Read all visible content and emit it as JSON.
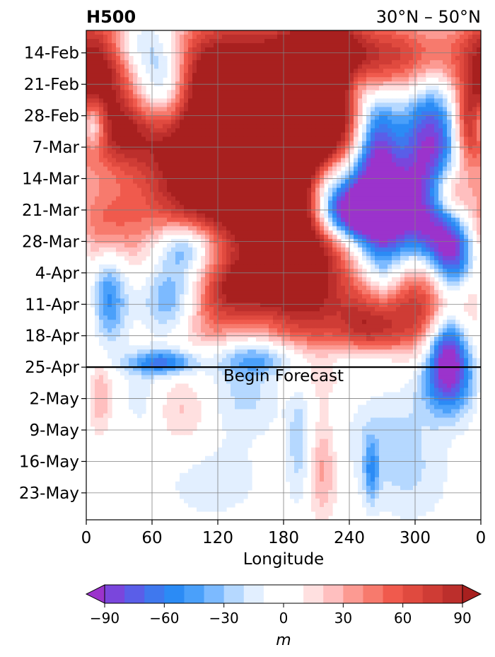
{
  "chart_data": {
    "type": "heatmap",
    "title_left": "H500",
    "title_right": "30°N – 50°N",
    "xlabel": "Longitude",
    "ylabel": "",
    "x_ticks": [
      "0",
      "60",
      "120",
      "180",
      "240",
      "300",
      "0"
    ],
    "x_tick_values": [
      0,
      60,
      120,
      180,
      240,
      300,
      360
    ],
    "xlim": [
      0,
      360
    ],
    "y_ticks": [
      "14-Feb",
      "21-Feb",
      "28-Feb",
      "7-Mar",
      "14-Mar",
      "21-Mar",
      "28-Mar",
      "4-Apr",
      "11-Apr",
      "18-Apr",
      "25-Apr",
      "2-May",
      "9-May",
      "16-May",
      "23-May"
    ],
    "y_range": [
      "2024-02-09",
      "2024-05-28"
    ],
    "y_inverted": true,
    "grid": true,
    "forecast_line": {
      "date": "2024-04-24",
      "label": "Begin Forecast"
    },
    "colorbar": {
      "label": "m",
      "levels": [
        -100,
        -90,
        -80,
        -70,
        -60,
        -50,
        -40,
        -30,
        -20,
        -10,
        10,
        20,
        30,
        40,
        50,
        60,
        70,
        80,
        90,
        100
      ],
      "colors": [
        "#9b33cc",
        "#7a46dc",
        "#5a5ee8",
        "#3f78ee",
        "#2b8bf5",
        "#4aa0fa",
        "#7cbaff",
        "#b5d8ff",
        "#e2efff",
        "#ffffff",
        "#ffe0e0",
        "#ffbfbf",
        "#fc9a92",
        "#f77a6d",
        "#f05a4d",
        "#e04a3f",
        "#cf3c35",
        "#bc2f2c",
        "#a8201f"
      ],
      "ticks": [
        "−90",
        "−60",
        "−30",
        "0",
        "30",
        "60",
        "90"
      ],
      "tick_values": [
        -90,
        -60,
        -30,
        0,
        30,
        60,
        90
      ],
      "extend": "both"
    },
    "field_blobs": [
      {
        "lon": 10,
        "date": "2024-02-18",
        "dlon": 22,
        "ddays": 10,
        "value": 95
      },
      {
        "lon": 40,
        "date": "2024-02-12",
        "dlon": 18,
        "ddays": 4,
        "value": -30
      },
      {
        "lon": 70,
        "date": "2024-02-21",
        "dlon": 18,
        "ddays": 8,
        "value": -75
      },
      {
        "lon": 110,
        "date": "2024-02-18",
        "dlon": 35,
        "ddays": 9,
        "value": 70
      },
      {
        "lon": 165,
        "date": "2024-02-24",
        "dlon": 45,
        "ddays": 12,
        "value": 90
      },
      {
        "lon": 215,
        "date": "2024-02-17",
        "dlon": 28,
        "ddays": 9,
        "value": 100
      },
      {
        "lon": 285,
        "date": "2024-02-15",
        "dlon": 45,
        "ddays": 6,
        "value": 75
      },
      {
        "lon": 245,
        "date": "2024-02-21",
        "dlon": 10,
        "ddays": 4,
        "value": -40
      },
      {
        "lon": 40,
        "date": "2024-03-03",
        "dlon": 35,
        "ddays": 6,
        "value": 70
      },
      {
        "lon": 5,
        "date": "2024-03-01",
        "dlon": 9,
        "ddays": 4,
        "value": -85
      },
      {
        "lon": 140,
        "date": "2024-03-06",
        "dlon": 50,
        "ddays": 10,
        "value": 75
      },
      {
        "lon": 195,
        "date": "2024-03-02",
        "dlon": 30,
        "ddays": 7,
        "value": 100
      },
      {
        "lon": 265,
        "date": "2024-03-04",
        "dlon": 14,
        "ddays": 9,
        "value": -80
      },
      {
        "lon": 315,
        "date": "2024-03-07",
        "dlon": 20,
        "ddays": 12,
        "value": -100
      },
      {
        "lon": 350,
        "date": "2024-03-02",
        "dlon": 10,
        "ddays": 6,
        "value": 60
      },
      {
        "lon": 100,
        "date": "2024-03-17",
        "dlon": 40,
        "ddays": 9,
        "value": 75
      },
      {
        "lon": 175,
        "date": "2024-03-20",
        "dlon": 30,
        "ddays": 11,
        "value": 100
      },
      {
        "lon": 215,
        "date": "2024-03-13",
        "dlon": 15,
        "ddays": 5,
        "value": -50
      },
      {
        "lon": 260,
        "date": "2024-03-17",
        "dlon": 30,
        "ddays": 6,
        "value": -85
      },
      {
        "lon": 240,
        "date": "2024-03-21",
        "dlon": 25,
        "ddays": 4,
        "value": -95
      },
      {
        "lon": 330,
        "date": "2024-03-16",
        "dlon": 14,
        "ddays": 5,
        "value": 70
      },
      {
        "lon": 15,
        "date": "2024-03-24",
        "dlon": 25,
        "ddays": 7,
        "value": 50
      },
      {
        "lon": 90,
        "date": "2024-03-28",
        "dlon": 18,
        "ddays": 4,
        "value": -60
      },
      {
        "lon": 270,
        "date": "2024-03-30",
        "dlon": 15,
        "ddays": 11,
        "value": -65
      },
      {
        "lon": 310,
        "date": "2024-03-25",
        "dlon": 20,
        "ddays": 5,
        "value": -50
      },
      {
        "lon": 335,
        "date": "2024-03-30",
        "dlon": 14,
        "ddays": 6,
        "value": -95
      },
      {
        "lon": 200,
        "date": "2024-04-04",
        "dlon": 30,
        "ddays": 14,
        "value": 90
      },
      {
        "lon": 140,
        "date": "2024-04-06",
        "dlon": 25,
        "ddays": 5,
        "value": 70
      },
      {
        "lon": 20,
        "date": "2024-04-08",
        "dlon": 12,
        "ddays": 8,
        "value": -65
      },
      {
        "lon": 80,
        "date": "2024-04-09",
        "dlon": 20,
        "ddays": 6,
        "value": -55
      },
      {
        "lon": 110,
        "date": "2024-04-13",
        "dlon": 25,
        "ddays": 6,
        "value": 45
      },
      {
        "lon": 300,
        "date": "2024-04-11",
        "dlon": 40,
        "ddays": 8,
        "value": 80
      },
      {
        "lon": 260,
        "date": "2024-04-16",
        "dlon": 20,
        "ddays": 6,
        "value": 60
      },
      {
        "lon": 330,
        "date": "2024-04-20",
        "dlon": 13,
        "ddays": 7,
        "value": -100
      },
      {
        "lon": 255,
        "date": "2024-04-22",
        "dlon": 25,
        "ddays": 3,
        "value": -40
      },
      {
        "lon": 70,
        "date": "2024-04-23",
        "dlon": 22,
        "ddays": 2,
        "value": -65
      },
      {
        "lon": 160,
        "date": "2024-04-22",
        "dlon": 30,
        "ddays": 3,
        "value": -50
      },
      {
        "lon": 12,
        "date": "2024-04-30",
        "dlon": 8,
        "ddays": 6,
        "value": 35
      },
      {
        "lon": 90,
        "date": "2024-05-04",
        "dlon": 18,
        "ddays": 6,
        "value": 25
      },
      {
        "lon": 50,
        "date": "2024-05-01",
        "dlon": 12,
        "ddays": 5,
        "value": -15
      },
      {
        "lon": 150,
        "date": "2024-04-30",
        "dlon": 30,
        "ddays": 6,
        "value": -25
      },
      {
        "lon": 330,
        "date": "2024-04-27",
        "dlon": 20,
        "ddays": 6,
        "value": -45
      },
      {
        "lon": 270,
        "date": "2024-05-08",
        "dlon": 30,
        "ddays": 10,
        "value": -20
      },
      {
        "lon": 195,
        "date": "2024-05-10",
        "dlon": 8,
        "ddays": 10,
        "value": -30
      },
      {
        "lon": 215,
        "date": "2024-05-17",
        "dlon": 10,
        "ddays": 8,
        "value": 35
      },
      {
        "lon": 260,
        "date": "2024-05-17",
        "dlon": 5,
        "ddays": 5,
        "value": -40
      },
      {
        "lon": 115,
        "date": "2024-05-19",
        "dlon": 40,
        "ddays": 8,
        "value": -15
      },
      {
        "lon": 300,
        "date": "2024-05-19",
        "dlon": 25,
        "ddays": 8,
        "value": -15
      },
      {
        "lon": 70,
        "date": "2024-05-17",
        "dlon": 20,
        "ddays": 10,
        "value": 0
      }
    ]
  }
}
